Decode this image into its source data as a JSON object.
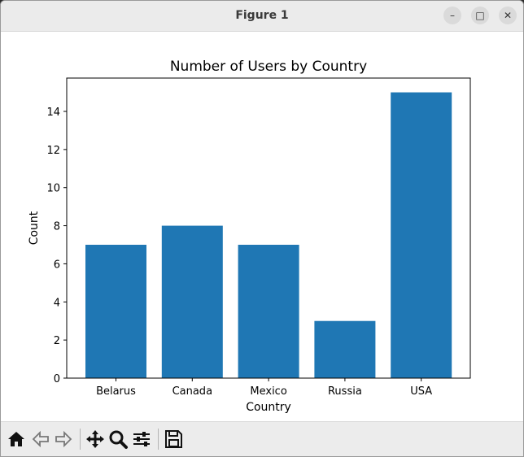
{
  "window": {
    "title": "Figure 1",
    "controls": {
      "minimize": "–",
      "maximize": "□",
      "close": "✕"
    }
  },
  "toolbar": {
    "buttons": [
      "home-icon",
      "back-icon",
      "forward-icon",
      "pan-icon",
      "zoom-icon",
      "configure-icon",
      "save-icon"
    ]
  },
  "colors": {
    "bar": "#1f77b4",
    "titlebar": "#ebebeb",
    "toolbar": "#ececec"
  },
  "chart_data": {
    "type": "bar",
    "title": "Number of Users by Country",
    "xlabel": "Country",
    "ylabel": "Count",
    "categories": [
      "Belarus",
      "Canada",
      "Mexico",
      "Russia",
      "USA"
    ],
    "values": [
      7,
      8,
      7,
      3,
      15
    ],
    "ylim": [
      0,
      15.75
    ],
    "yticks": [
      0,
      2,
      4,
      6,
      8,
      10,
      12,
      14
    ],
    "grid": false,
    "legend": null
  }
}
